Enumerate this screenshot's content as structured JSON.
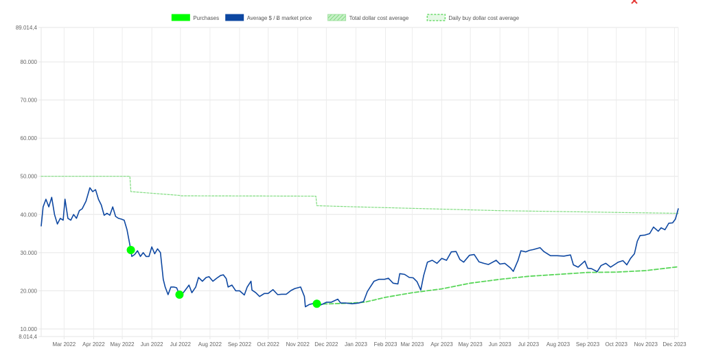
{
  "chart_data": {
    "type": "line",
    "ylim": [
      8014.4,
      89014.4
    ],
    "y_ticks": [
      {
        "label": "89.014,4",
        "value": 89014.4
      },
      {
        "label": "80.000",
        "value": 80000
      },
      {
        "label": "70.000",
        "value": 70000
      },
      {
        "label": "60.000",
        "value": 60000
      },
      {
        "label": "50.000",
        "value": 50000
      },
      {
        "label": "40.000",
        "value": 40000
      },
      {
        "label": "30.000",
        "value": 30000
      },
      {
        "label": "20.000",
        "value": 20000
      },
      {
        "label": "10.000",
        "value": 10000
      },
      {
        "label": "8.014,4",
        "value": 8014.4
      }
    ],
    "xlim": [
      "2022-02-05",
      "2023-12-05"
    ],
    "x_ticks": [
      {
        "label": "Mar 2022",
        "date": "2022-03-01"
      },
      {
        "label": "Apr 2022",
        "date": "2022-04-01"
      },
      {
        "label": "May 2022",
        "date": "2022-05-01"
      },
      {
        "label": "Jun 2022",
        "date": "2022-06-01"
      },
      {
        "label": "Jul 2022",
        "date": "2022-07-01"
      },
      {
        "label": "Aug 2022",
        "date": "2022-08-01"
      },
      {
        "label": "Sep 2022",
        "date": "2022-09-01"
      },
      {
        "label": "Oct 2022",
        "date": "2022-10-01"
      },
      {
        "label": "Nov 2022",
        "date": "2022-11-01"
      },
      {
        "label": "Dec 2022",
        "date": "2022-12-01"
      },
      {
        "label": "Jan 2023",
        "date": "2023-01-01"
      },
      {
        "label": "Feb 2023",
        "date": "2023-02-01"
      },
      {
        "label": "Mar 2023",
        "date": "2023-03-01"
      },
      {
        "label": "Apr 2023",
        "date": "2023-04-01"
      },
      {
        "label": "May 2023",
        "date": "2023-05-01"
      },
      {
        "label": "Jun 2023",
        "date": "2023-06-01"
      },
      {
        "label": "Jul 2023",
        "date": "2023-07-01"
      },
      {
        "label": "Aug 2023",
        "date": "2023-08-01"
      },
      {
        "label": "Sep 2023",
        "date": "2023-09-01"
      },
      {
        "label": "Oct 2023",
        "date": "2023-10-01"
      },
      {
        "label": "Nov 2023",
        "date": "2023-11-01"
      },
      {
        "label": "Dec 2023",
        "date": "2023-12-01"
      }
    ],
    "grid": true,
    "legend_position": "top-center",
    "legend": [
      {
        "key": "purchases",
        "label": "Purchases",
        "color": "#00ff00",
        "style": "solid-fill"
      },
      {
        "key": "price",
        "label": "Average $ / Ƀ market price",
        "color": "#0d47a1",
        "style": "solid-fill"
      },
      {
        "key": "total_dca",
        "label": "Total dollar cost average",
        "color": "#8fd68f",
        "style": "hatched"
      },
      {
        "key": "daily_dca",
        "label": "Daily buy dollar cost average",
        "color": "#6cdc6c",
        "style": "dashed-outline"
      }
    ],
    "series": [
      {
        "key": "price",
        "name": "Average $ / Ƀ market price",
        "color": "#0d47a1",
        "line": "solid",
        "points": [
          [
            "2022-02-05",
            37000
          ],
          [
            "2022-02-07",
            42000
          ],
          [
            "2022-02-10",
            44000
          ],
          [
            "2022-02-13",
            42000
          ],
          [
            "2022-02-16",
            44500
          ],
          [
            "2022-02-19",
            40000
          ],
          [
            "2022-02-22",
            37500
          ],
          [
            "2022-02-25",
            39000
          ],
          [
            "2022-02-28",
            38500
          ],
          [
            "2022-03-02",
            44000
          ],
          [
            "2022-03-05",
            39000
          ],
          [
            "2022-03-08",
            38500
          ],
          [
            "2022-03-11",
            40000
          ],
          [
            "2022-03-14",
            39000
          ],
          [
            "2022-03-17",
            41000
          ],
          [
            "2022-03-20",
            41500
          ],
          [
            "2022-03-24",
            43500
          ],
          [
            "2022-03-28",
            47000
          ],
          [
            "2022-03-31",
            46000
          ],
          [
            "2022-04-03",
            46500
          ],
          [
            "2022-04-06",
            44000
          ],
          [
            "2022-04-09",
            42500
          ],
          [
            "2022-04-12",
            39800
          ],
          [
            "2022-04-15",
            40300
          ],
          [
            "2022-04-18",
            39800
          ],
          [
            "2022-04-21",
            42000
          ],
          [
            "2022-04-24",
            39500
          ],
          [
            "2022-04-27",
            39000
          ],
          [
            "2022-04-30",
            38800
          ],
          [
            "2022-05-03",
            38500
          ],
          [
            "2022-05-06",
            36000
          ],
          [
            "2022-05-09",
            32000
          ],
          [
            "2022-05-11",
            29000
          ],
          [
            "2022-05-14",
            29500
          ],
          [
            "2022-05-17",
            30500
          ],
          [
            "2022-05-20",
            29000
          ],
          [
            "2022-05-23",
            30000
          ],
          [
            "2022-05-26",
            29000
          ],
          [
            "2022-05-29",
            29000
          ],
          [
            "2022-06-01",
            31500
          ],
          [
            "2022-06-04",
            29700
          ],
          [
            "2022-06-07",
            31000
          ],
          [
            "2022-06-10",
            30000
          ],
          [
            "2022-06-13",
            23000
          ],
          [
            "2022-06-15",
            21000
          ],
          [
            "2022-06-18",
            19000
          ],
          [
            "2022-06-21",
            21000
          ],
          [
            "2022-06-24",
            21000
          ],
          [
            "2022-06-27",
            20800
          ],
          [
            "2022-06-30",
            19000
          ],
          [
            "2022-07-04",
            19500
          ],
          [
            "2022-07-07",
            20500
          ],
          [
            "2022-07-10",
            21500
          ],
          [
            "2022-07-13",
            19500
          ],
          [
            "2022-07-17",
            21000
          ],
          [
            "2022-07-20",
            23500
          ],
          [
            "2022-07-24",
            22500
          ],
          [
            "2022-07-28",
            23500
          ],
          [
            "2022-07-31",
            23700
          ],
          [
            "2022-08-04",
            22500
          ],
          [
            "2022-08-08",
            23300
          ],
          [
            "2022-08-12",
            24000
          ],
          [
            "2022-08-15",
            24200
          ],
          [
            "2022-08-18",
            23200
          ],
          [
            "2022-08-20",
            21000
          ],
          [
            "2022-08-24",
            21500
          ],
          [
            "2022-08-28",
            20000
          ],
          [
            "2022-09-01",
            20000
          ],
          [
            "2022-09-06",
            18900
          ],
          [
            "2022-09-09",
            21000
          ],
          [
            "2022-09-13",
            22500
          ],
          [
            "2022-09-14",
            20200
          ],
          [
            "2022-09-18",
            19500
          ],
          [
            "2022-09-22",
            18500
          ],
          [
            "2022-09-27",
            19300
          ],
          [
            "2022-10-01",
            19300
          ],
          [
            "2022-10-06",
            20300
          ],
          [
            "2022-10-11",
            19000
          ],
          [
            "2022-10-15",
            19100
          ],
          [
            "2022-10-20",
            19100
          ],
          [
            "2022-10-25",
            20100
          ],
          [
            "2022-10-29",
            20600
          ],
          [
            "2022-11-04",
            21000
          ],
          [
            "2022-11-08",
            18500
          ],
          [
            "2022-11-09",
            15800
          ],
          [
            "2022-11-13",
            16400
          ],
          [
            "2022-11-18",
            16700
          ],
          [
            "2022-11-22",
            16000
          ],
          [
            "2022-11-27",
            16500
          ],
          [
            "2022-12-01",
            17000
          ],
          [
            "2022-12-06",
            17000
          ],
          [
            "2022-12-13",
            17800
          ],
          [
            "2022-12-16",
            16800
          ],
          [
            "2022-12-21",
            16800
          ],
          [
            "2022-12-28",
            16600
          ],
          [
            "2023-01-04",
            16800
          ],
          [
            "2023-01-09",
            17200
          ],
          [
            "2023-01-13",
            19800
          ],
          [
            "2023-01-16",
            21000
          ],
          [
            "2023-01-20",
            22500
          ],
          [
            "2023-01-25",
            23000
          ],
          [
            "2023-01-31",
            23000
          ],
          [
            "2023-02-04",
            23300
          ],
          [
            "2023-02-09",
            22000
          ],
          [
            "2023-02-14",
            21800
          ],
          [
            "2023-02-16",
            24500
          ],
          [
            "2023-02-21",
            24300
          ],
          [
            "2023-02-26",
            23500
          ],
          [
            "2023-03-02",
            23400
          ],
          [
            "2023-03-06",
            22400
          ],
          [
            "2023-03-10",
            20200
          ],
          [
            "2023-03-13",
            24000
          ],
          [
            "2023-03-17",
            27500
          ],
          [
            "2023-03-22",
            28000
          ],
          [
            "2023-03-27",
            27200
          ],
          [
            "2023-04-01",
            28500
          ],
          [
            "2023-04-06",
            28000
          ],
          [
            "2023-04-11",
            30200
          ],
          [
            "2023-04-16",
            30300
          ],
          [
            "2023-04-20",
            28200
          ],
          [
            "2023-04-24",
            27500
          ],
          [
            "2023-04-30",
            29300
          ],
          [
            "2023-05-05",
            29500
          ],
          [
            "2023-05-10",
            27600
          ],
          [
            "2023-05-15",
            27200
          ],
          [
            "2023-05-20",
            26900
          ],
          [
            "2023-05-28",
            28000
          ],
          [
            "2023-06-01",
            27000
          ],
          [
            "2023-06-06",
            27200
          ],
          [
            "2023-06-12",
            26000
          ],
          [
            "2023-06-15",
            25100
          ],
          [
            "2023-06-20",
            28000
          ],
          [
            "2023-06-23",
            30500
          ],
          [
            "2023-06-28",
            30200
          ],
          [
            "2023-07-02",
            30600
          ],
          [
            "2023-07-06",
            30800
          ],
          [
            "2023-07-13",
            31300
          ],
          [
            "2023-07-17",
            30300
          ],
          [
            "2023-07-24",
            29200
          ],
          [
            "2023-07-31",
            29200
          ],
          [
            "2023-08-07",
            29100
          ],
          [
            "2023-08-14",
            29400
          ],
          [
            "2023-08-17",
            26800
          ],
          [
            "2023-08-22",
            26200
          ],
          [
            "2023-08-29",
            27800
          ],
          [
            "2023-09-01",
            25900
          ],
          [
            "2023-09-05",
            25800
          ],
          [
            "2023-09-11",
            25000
          ],
          [
            "2023-09-15",
            26600
          ],
          [
            "2023-09-20",
            27200
          ],
          [
            "2023-09-25",
            26200
          ],
          [
            "2023-09-30",
            27000
          ],
          [
            "2023-10-03",
            27500
          ],
          [
            "2023-10-08",
            27900
          ],
          [
            "2023-10-12",
            26800
          ],
          [
            "2023-10-16",
            28500
          ],
          [
            "2023-10-20",
            29700
          ],
          [
            "2023-10-23",
            33000
          ],
          [
            "2023-10-26",
            34500
          ],
          [
            "2023-10-31",
            34600
          ],
          [
            "2023-11-05",
            35000
          ],
          [
            "2023-11-09",
            36700
          ],
          [
            "2023-11-14",
            35600
          ],
          [
            "2023-11-17",
            36500
          ],
          [
            "2023-11-21",
            36000
          ],
          [
            "2023-11-25",
            37700
          ],
          [
            "2023-11-29",
            37800
          ],
          [
            "2023-12-02",
            38800
          ],
          [
            "2023-12-05",
            41500
          ]
        ]
      },
      {
        "key": "total_dca",
        "name": "Total dollar cost average",
        "color": "#7fdc7f",
        "line": "dotted",
        "points": [
          [
            "2022-02-05",
            50000
          ],
          [
            "2022-05-09",
            50000
          ],
          [
            "2022-05-10",
            46000
          ],
          [
            "2022-06-30",
            45000
          ],
          [
            "2022-07-01",
            44900
          ],
          [
            "2022-11-20",
            44800
          ],
          [
            "2022-11-21",
            42300
          ],
          [
            "2023-01-01",
            42000
          ],
          [
            "2023-06-01",
            41000
          ],
          [
            "2023-12-05",
            40300
          ]
        ]
      },
      {
        "key": "daily_dca",
        "name": "Daily buy dollar cost average",
        "color": "#59d659",
        "line": "dashed",
        "points": [
          [
            "2022-11-21",
            16500
          ],
          [
            "2022-12-20",
            16700
          ],
          [
            "2023-01-10",
            17000
          ],
          [
            "2023-02-01",
            18300
          ],
          [
            "2023-03-01",
            19500
          ],
          [
            "2023-04-01",
            20500
          ],
          [
            "2023-05-01",
            22000
          ],
          [
            "2023-06-01",
            23000
          ],
          [
            "2023-07-01",
            23800
          ],
          [
            "2023-08-01",
            24300
          ],
          [
            "2023-09-01",
            24800
          ],
          [
            "2023-10-01",
            24900
          ],
          [
            "2023-11-01",
            25300
          ],
          [
            "2023-12-05",
            26300
          ]
        ]
      }
    ],
    "purchases": [
      {
        "date": "2022-05-10",
        "value": 30700
      },
      {
        "date": "2022-06-30",
        "value": 19000
      },
      {
        "date": "2022-11-21",
        "value": 16600
      }
    ]
  },
  "watermark": {
    "icon": "x-mark-icon",
    "color": "#e53935"
  }
}
